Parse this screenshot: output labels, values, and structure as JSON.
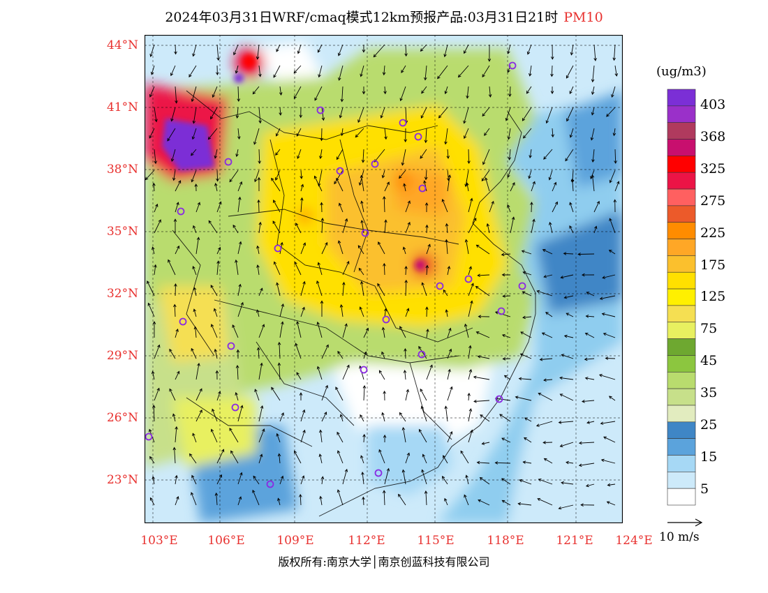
{
  "title": {
    "main": "2024年03月31日WRF/cmaq模式12km预报产品:03月31日21时",
    "product": "PM10"
  },
  "legend": {
    "unit": "(ug/m3)",
    "labels": [
      "403",
      "368",
      "325",
      "275",
      "225",
      "175",
      "125",
      "75",
      "45",
      "35",
      "25",
      "15",
      "5"
    ],
    "colors": [
      "#7b2fd6",
      "#9a30c9",
      "#b03a5e",
      "#c80f6e",
      "#ff0000",
      "#ec1446",
      "#ff6060",
      "#ec5a2a",
      "#ff8c00",
      "#ffa726",
      "#fbc02d",
      "#ffe000",
      "#fff000",
      "#f5df52",
      "#e8f060",
      "#6ea830",
      "#8cc63f",
      "#b9dc6e",
      "#c7e08a",
      "#e2ecbf",
      "#3f86c6",
      "#5ba3dc",
      "#a6d8f5",
      "#cdeafa",
      "#ffffff"
    ]
  },
  "axes": {
    "lat_labels": [
      "44°N",
      "41°N",
      "38°N",
      "35°N",
      "32°N",
      "29°N",
      "26°N",
      "23°N"
    ],
    "lon_labels": [
      "103°E",
      "106°E",
      "109°E",
      "112°E",
      "115°E",
      "118°E",
      "121°E",
      "124°E"
    ]
  },
  "wind": {
    "label": "10 m/s"
  },
  "copyright": "版权所有:南京大学│南京创蓝科技有限公司",
  "map_colors": {
    "sea": "#8fcdef",
    "land_clean": "#ffffff",
    "boundary": "#000000"
  }
}
